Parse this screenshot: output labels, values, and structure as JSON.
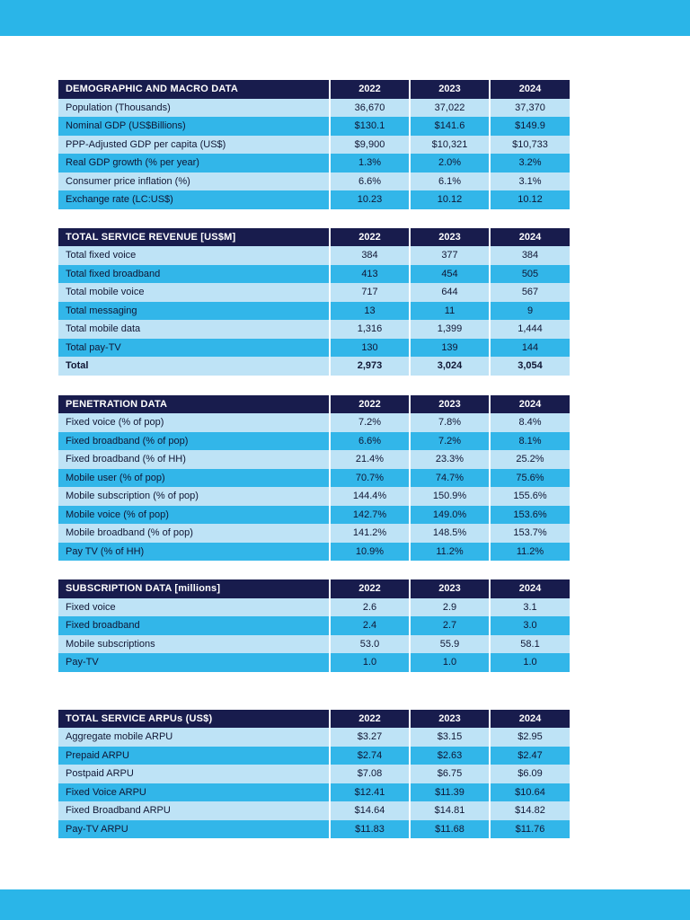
{
  "page": {
    "accent_color": "#2ab5e8",
    "header_color": "#181c4d",
    "row_light_color": "#bee3f6",
    "row_cyan_color": "#32b6e9"
  },
  "tables": [
    {
      "title": "DEMOGRAPHIC AND MACRO DATA",
      "years": [
        "2022",
        "2023",
        "2024"
      ],
      "rows": [
        {
          "label": "Population (Thousands)",
          "values": [
            "36,670",
            "37,022",
            "37,370"
          ]
        },
        {
          "label": "Nominal GDP (US$Billions)",
          "values": [
            "$130.1",
            "$141.6",
            "$149.9"
          ]
        },
        {
          "label": "PPP-Adjusted GDP per capita (US$)",
          "values": [
            "$9,900",
            "$10,321",
            "$10,733"
          ]
        },
        {
          "label": "Real GDP growth (% per year)",
          "values": [
            "1.3%",
            "2.0%",
            "3.2%"
          ]
        },
        {
          "label": "Consumer price inflation (%)",
          "values": [
            "6.6%",
            "6.1%",
            "3.1%"
          ]
        },
        {
          "label": "Exchange rate (LC:US$)",
          "values": [
            "10.23",
            "10.12",
            "10.12"
          ]
        }
      ]
    },
    {
      "title": "TOTAL SERVICE REVENUE [US$M]",
      "years": [
        "2022",
        "2023",
        "2024"
      ],
      "rows": [
        {
          "label": "Total fixed voice",
          "values": [
            "384",
            "377",
            "384"
          ]
        },
        {
          "label": "Total fixed broadband",
          "values": [
            "413",
            "454",
            "505"
          ]
        },
        {
          "label": "Total mobile voice",
          "values": [
            "717",
            "644",
            "567"
          ]
        },
        {
          "label": "Total messaging",
          "values": [
            "13",
            "11",
            "9"
          ]
        },
        {
          "label": "Total mobile data",
          "values": [
            "1,316",
            "1,399",
            "1,444"
          ]
        },
        {
          "label": "Total pay-TV",
          "values": [
            "130",
            "139",
            "144"
          ]
        },
        {
          "label": "Total",
          "values": [
            "2,973",
            "3,024",
            "3,054"
          ]
        }
      ]
    },
    {
      "title": "PENETRATION DATA",
      "years": [
        "2022",
        "2023",
        "2024"
      ],
      "rows": [
        {
          "label": "Fixed voice (% of pop)",
          "values": [
            "7.2%",
            "7.8%",
            "8.4%"
          ]
        },
        {
          "label": "Fixed broadband (% of pop)",
          "values": [
            "6.6%",
            "7.2%",
            "8.1%"
          ]
        },
        {
          "label": "Fixed broadband (% of HH)",
          "values": [
            "21.4%",
            "23.3%",
            "25.2%"
          ]
        },
        {
          "label": "Mobile user (% of pop)",
          "values": [
            "70.7%",
            "74.7%",
            "75.6%"
          ]
        },
        {
          "label": "Mobile subscription (% of pop)",
          "values": [
            "144.4%",
            "150.9%",
            "155.6%"
          ]
        },
        {
          "label": "Mobile voice (% of pop)",
          "values": [
            "142.7%",
            "149.0%",
            "153.6%"
          ]
        },
        {
          "label": "Mobile broadband (% of pop)",
          "values": [
            "141.2%",
            "148.5%",
            "153.7%"
          ]
        },
        {
          "label": "Pay TV (% of HH)",
          "values": [
            "10.9%",
            "11.2%",
            "11.2%"
          ]
        }
      ]
    },
    {
      "title": "SUBSCRIPTION DATA [millions]",
      "years": [
        "2022",
        "2023",
        "2024"
      ],
      "rows": [
        {
          "label": "Fixed voice",
          "values": [
            "2.6",
            "2.9",
            "3.1"
          ]
        },
        {
          "label": "Fixed broadband",
          "values": [
            "2.4",
            "2.7",
            "3.0"
          ]
        },
        {
          "label": "Mobile subscriptions",
          "values": [
            "53.0",
            "55.9",
            "58.1"
          ]
        },
        {
          "label": "Pay-TV",
          "values": [
            "1.0",
            "1.0",
            "1.0"
          ]
        }
      ]
    },
    {
      "title": "TOTAL SERVICE ARPUs (US$)",
      "years": [
        "2022",
        "2023",
        "2024"
      ],
      "rows": [
        {
          "label": "Aggregate mobile ARPU",
          "values": [
            "$3.27",
            "$3.15",
            "$2.95"
          ]
        },
        {
          "label": "Prepaid ARPU",
          "values": [
            "$2.74",
            "$2.63",
            "$2.47"
          ]
        },
        {
          "label": "Postpaid ARPU",
          "values": [
            "$7.08",
            "$6.75",
            "$6.09"
          ]
        },
        {
          "label": "Fixed Voice ARPU",
          "values": [
            "$12.41",
            "$11.39",
            "$10.64"
          ]
        },
        {
          "label": "Fixed Broadband ARPU",
          "values": [
            "$14.64",
            "$14.81",
            "$14.82"
          ]
        },
        {
          "label": "Pay-TV ARPU",
          "values": [
            "$11.83",
            "$11.68",
            "$11.76"
          ]
        }
      ]
    }
  ]
}
